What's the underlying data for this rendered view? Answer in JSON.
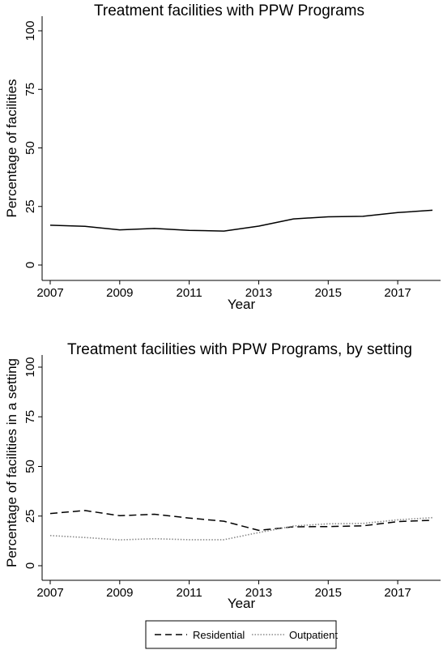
{
  "chart_data": [
    {
      "type": "line",
      "title": "Treatment facilities with PPW Programs",
      "xlabel": "Year",
      "ylabel": "Percentage of facilities",
      "x": [
        2007,
        2008,
        2009,
        2010,
        2011,
        2012,
        2013,
        2014,
        2015,
        2016,
        2017,
        2018
      ],
      "xticks": [
        "2007",
        "2009",
        "2011",
        "2013",
        "2015",
        "2017"
      ],
      "yticks": [
        "0",
        "25",
        "50",
        "75",
        "100"
      ],
      "xlim": [
        2007,
        2018
      ],
      "ylim": [
        0,
        100
      ],
      "grid": false,
      "series": [
        {
          "name": "",
          "style": "solid",
          "color": "#000000",
          "values": [
            17.0,
            16.5,
            15.0,
            15.6,
            14.8,
            14.5,
            16.6,
            19.7,
            20.6,
            20.8,
            22.4,
            23.4
          ]
        }
      ]
    },
    {
      "type": "line",
      "title": "Treatment facilities with PPW Programs, by setting",
      "xlabel": "Year",
      "ylabel": "Percentage of facilities in a setting",
      "x": [
        2007,
        2008,
        2009,
        2010,
        2011,
        2012,
        2013,
        2014,
        2015,
        2016,
        2017,
        2018
      ],
      "xticks": [
        "2007",
        "2009",
        "2011",
        "2013",
        "2015",
        "2017"
      ],
      "yticks": [
        "0",
        "25",
        "50",
        "75",
        "100"
      ],
      "xlim": [
        2007,
        2018
      ],
      "ylim": [
        0,
        100
      ],
      "grid": false,
      "legend_position": "bottom",
      "series": [
        {
          "name": "Residential",
          "style": "dashed",
          "color": "#000000",
          "values": [
            26.3,
            27.8,
            25.2,
            25.9,
            24.0,
            22.4,
            17.8,
            19.6,
            19.7,
            20.1,
            22.2,
            22.9
          ]
        },
        {
          "name": "Outpatient",
          "style": "dotted",
          "color": "#8a8a8a",
          "values": [
            15.2,
            14.2,
            13.0,
            13.6,
            13.1,
            13.1,
            16.7,
            20.0,
            21.1,
            21.3,
            23.1,
            24.2
          ]
        }
      ]
    }
  ]
}
